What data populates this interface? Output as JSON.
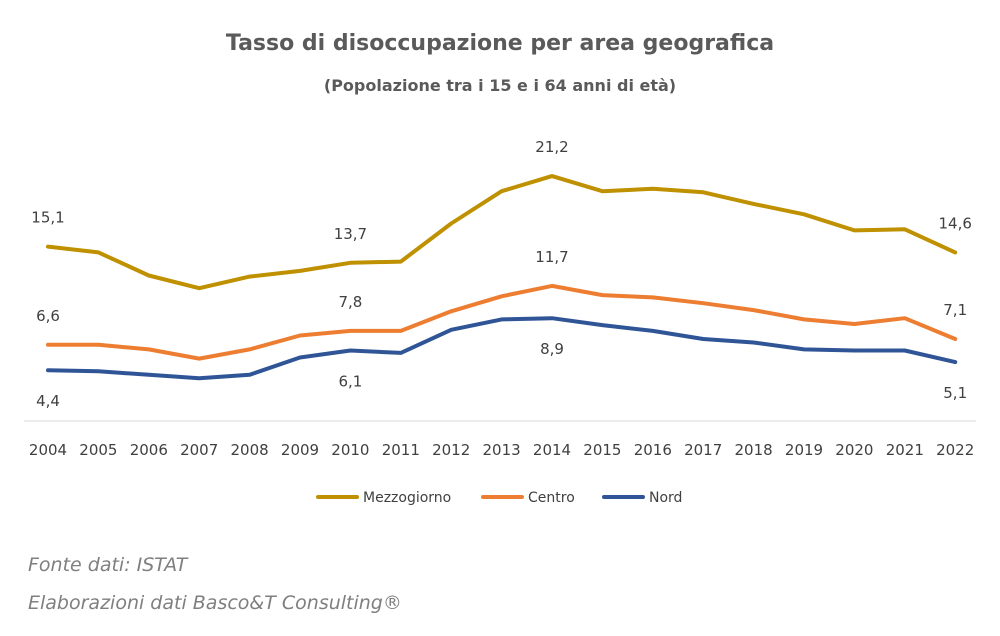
{
  "chart_data": {
    "type": "line",
    "title": "Tasso di disoccupazione per area geografica",
    "subtitle": "(Popolazione tra i 15 e i 64 anni di età)",
    "xlabel": "",
    "ylabel": "",
    "ylim": [
      0,
      24
    ],
    "grid": false,
    "legend_position": "bottom",
    "categories": [
      "2004",
      "2005",
      "2006",
      "2007",
      "2008",
      "2009",
      "2010",
      "2011",
      "2012",
      "2013",
      "2014",
      "2015",
      "2016",
      "2017",
      "2018",
      "2019",
      "2020",
      "2021",
      "2022"
    ],
    "series": [
      {
        "name": "Mezzogiorno",
        "color": "#bf9000",
        "values": [
          15.1,
          14.6,
          12.6,
          11.5,
          12.5,
          13.0,
          13.7,
          13.8,
          17.1,
          19.9,
          21.2,
          19.9,
          20.1,
          19.8,
          18.8,
          17.9,
          16.5,
          16.6,
          14.6
        ],
        "labels": [
          {
            "index": 0,
            "text": "15,1",
            "pos": "above"
          },
          {
            "index": 6,
            "text": "13,7",
            "pos": "above"
          },
          {
            "index": 10,
            "text": "21,2",
            "pos": "above"
          },
          {
            "index": 18,
            "text": "14,6",
            "pos": "above"
          }
        ]
      },
      {
        "name": "Centro",
        "color": "#ed7d31",
        "values": [
          6.6,
          6.6,
          6.2,
          5.4,
          6.2,
          7.4,
          7.8,
          7.8,
          9.5,
          10.8,
          11.7,
          10.9,
          10.7,
          10.2,
          9.6,
          8.8,
          8.4,
          8.9,
          7.1
        ],
        "labels": [
          {
            "index": 0,
            "text": "6,6",
            "pos": "above"
          },
          {
            "index": 6,
            "text": "7,8",
            "pos": "above"
          },
          {
            "index": 10,
            "text": "11,7",
            "pos": "above"
          },
          {
            "index": 18,
            "text": "7,1",
            "pos": "above"
          }
        ]
      },
      {
        "name": "Nord",
        "color": "#2f5597",
        "values": [
          4.4,
          4.3,
          4.0,
          3.7,
          4.0,
          5.5,
          6.1,
          5.9,
          7.9,
          8.8,
          8.9,
          8.3,
          7.8,
          7.1,
          6.8,
          6.2,
          6.1,
          6.1,
          5.1
        ],
        "labels": [
          {
            "index": 0,
            "text": "4,4",
            "pos": "below"
          },
          {
            "index": 6,
            "text": "6,1",
            "pos": "below"
          },
          {
            "index": 10,
            "text": "8,9",
            "pos": "below"
          },
          {
            "index": 18,
            "text": "5,1",
            "pos": "below"
          }
        ]
      }
    ]
  },
  "footer": {
    "source": "Fonte dati: ISTAT",
    "credit": "Elaborazioni dati Basco&T Consulting®"
  }
}
